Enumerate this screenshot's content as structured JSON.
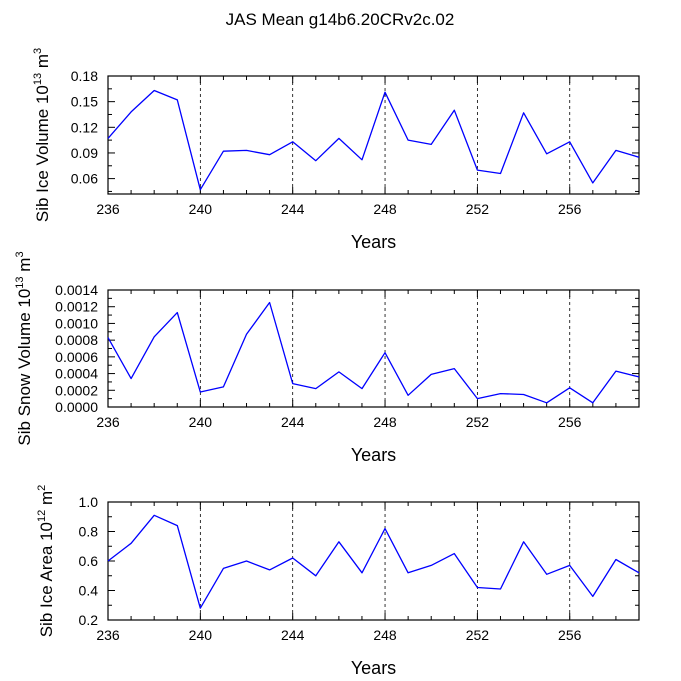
{
  "title": "JAS Mean g14b6.20CRv2c.02",
  "chart_data": [
    {
      "type": "line",
      "title": "JAS Mean g14b6.20CRv2c.02",
      "xlabel": "Years",
      "ylabel": "Sib Ice Volume 10",
      "ylabel_exp": "13",
      "ylabel_unit": " m",
      "ylabel_unit_exp": "3",
      "xlim": [
        236,
        259
      ],
      "ylim": [
        0.042,
        0.18
      ],
      "x_ticks": [
        236,
        240,
        244,
        248,
        252,
        256
      ],
      "y_ticks": [
        0.06,
        0.09,
        0.12,
        0.15,
        0.18
      ],
      "y_tick_labels": [
        "0.06",
        "0.09",
        "0.12",
        "0.15",
        "0.18"
      ],
      "grid_x": [
        240,
        244,
        248,
        252,
        256
      ],
      "series": [
        {
          "name": "Sib Ice Volume",
          "color": "#0000ff",
          "x": [
            236,
            237,
            238,
            239,
            240,
            241,
            242,
            243,
            244,
            245,
            246,
            247,
            248,
            249,
            250,
            251,
            252,
            253,
            254,
            255,
            256,
            257,
            258,
            259
          ],
          "values": [
            0.107,
            0.138,
            0.163,
            0.152,
            0.047,
            0.092,
            0.093,
            0.088,
            0.103,
            0.081,
            0.107,
            0.082,
            0.161,
            0.105,
            0.1,
            0.14,
            0.07,
            0.066,
            0.137,
            0.089,
            0.103,
            0.055,
            0.093,
            0.085
          ]
        }
      ]
    },
    {
      "type": "line",
      "xlabel": "Years",
      "ylabel": "Sib Snow Volume 10",
      "ylabel_exp": "13",
      "ylabel_unit": " m",
      "ylabel_unit_exp": "3",
      "xlim": [
        236,
        259
      ],
      "ylim": [
        0.0,
        0.0014
      ],
      "x_ticks": [
        236,
        240,
        244,
        248,
        252,
        256
      ],
      "y_ticks": [
        0.0,
        0.0002,
        0.0004,
        0.0006,
        0.0008,
        0.001,
        0.0012,
        0.0014
      ],
      "y_tick_labels": [
        "0.0000",
        "0.0002",
        "0.0004",
        "0.0006",
        "0.0008",
        "0.0010",
        "0.0012",
        "0.0014"
      ],
      "grid_x": [
        240,
        244,
        248,
        252,
        256
      ],
      "series": [
        {
          "name": "Sib Snow Volume",
          "color": "#0000ff",
          "x": [
            236,
            237,
            238,
            239,
            240,
            241,
            242,
            243,
            244,
            245,
            246,
            247,
            248,
            249,
            250,
            251,
            252,
            253,
            254,
            255,
            256,
            257,
            258,
            259
          ],
          "values": [
            0.00083,
            0.00034,
            0.00084,
            0.00113,
            0.00018,
            0.00024,
            0.00087,
            0.00125,
            0.00028,
            0.00022,
            0.00042,
            0.00022,
            0.00065,
            0.00014,
            0.00039,
            0.00046,
            0.0001,
            0.00016,
            0.00015,
            5e-05,
            0.00023,
            5e-05,
            0.00043,
            0.00036
          ]
        }
      ]
    },
    {
      "type": "line",
      "xlabel": "Years",
      "ylabel": "Sib Ice Area 10",
      "ylabel_exp": "12",
      "ylabel_unit": " m",
      "ylabel_unit_exp": "2",
      "xlim": [
        236,
        259
      ],
      "ylim": [
        0.2,
        1.0
      ],
      "x_ticks": [
        236,
        240,
        244,
        248,
        252,
        256
      ],
      "y_ticks": [
        0.2,
        0.4,
        0.6,
        0.8,
        1.0
      ],
      "y_tick_labels": [
        "0.2",
        "0.4",
        "0.6",
        "0.8",
        "1.0"
      ],
      "grid_x": [
        240,
        244,
        248,
        252,
        256
      ],
      "series": [
        {
          "name": "Sib Ice Area",
          "color": "#0000ff",
          "x": [
            236,
            237,
            238,
            239,
            240,
            241,
            242,
            243,
            244,
            245,
            246,
            247,
            248,
            249,
            250,
            251,
            252,
            253,
            254,
            255,
            256,
            257,
            258,
            259
          ],
          "values": [
            0.6,
            0.72,
            0.91,
            0.84,
            0.28,
            0.55,
            0.6,
            0.54,
            0.62,
            0.5,
            0.73,
            0.52,
            0.82,
            0.52,
            0.57,
            0.65,
            0.42,
            0.41,
            0.73,
            0.51,
            0.57,
            0.36,
            0.61,
            0.52
          ]
        }
      ]
    }
  ]
}
